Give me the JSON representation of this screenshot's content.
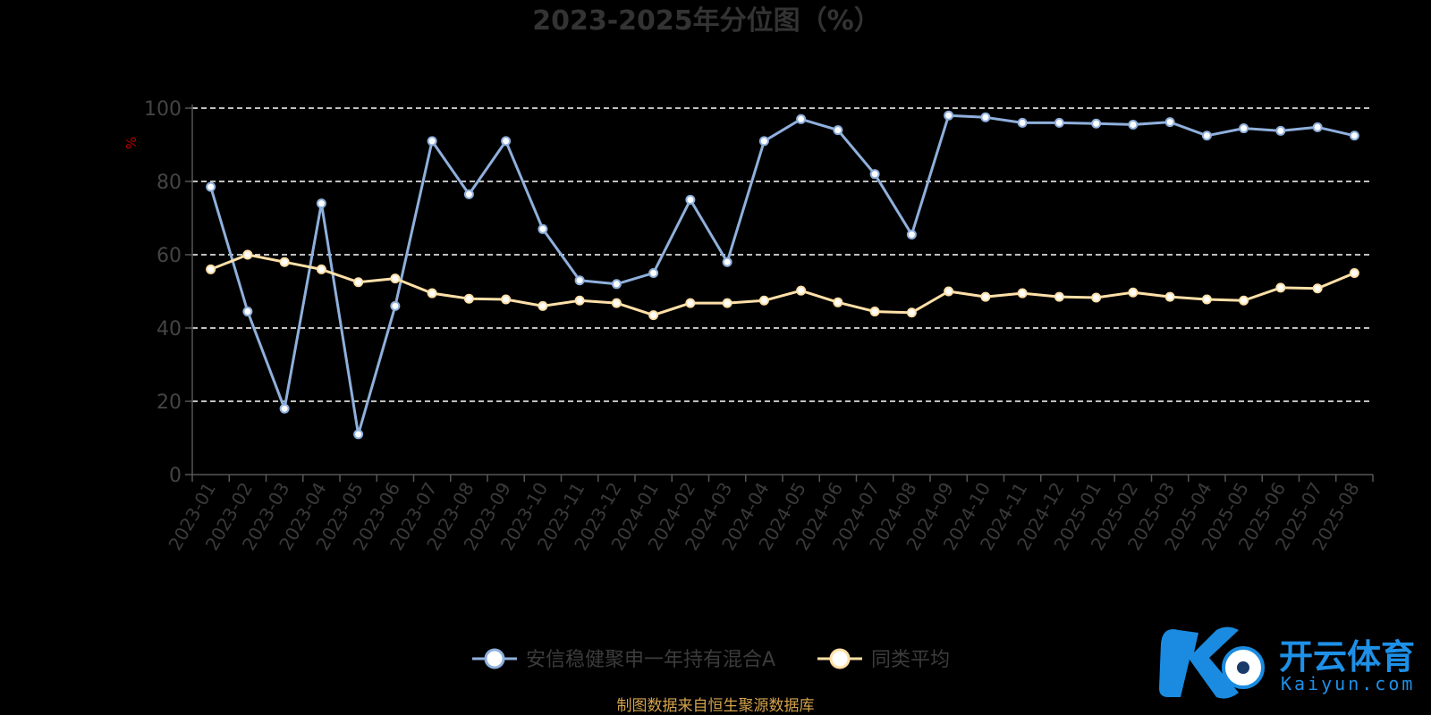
{
  "chart_data": {
    "type": "line",
    "title": "2023-2025年分位图（%）",
    "ylabel": "%",
    "xlabel": "",
    "ylim": [
      0,
      100
    ],
    "yticks": [
      0,
      20,
      40,
      60,
      80,
      100
    ],
    "grid": true,
    "grid_style": "dashed",
    "legend_position": "bottom",
    "categories": [
      "2023-01",
      "2023-02",
      "2023-03",
      "2023-04",
      "2023-05",
      "2023-06",
      "2023-07",
      "2023-08",
      "2023-09",
      "2023-10",
      "2023-11",
      "2023-12",
      "2024-01",
      "2024-02",
      "2024-03",
      "2024-04",
      "2024-05",
      "2024-06",
      "2024-07",
      "2024-08",
      "2024-09",
      "2024-10",
      "2024-11",
      "2024-12",
      "2025-01",
      "2025-02",
      "2025-03",
      "2025-04",
      "2025-05",
      "2025-06",
      "2025-07",
      "2025-08"
    ],
    "series": [
      {
        "name": "安信稳健聚申一年持有混合A",
        "color": "#8fb0dc",
        "values": [
          78.5,
          44.5,
          18,
          74,
          11,
          46,
          91,
          76.5,
          91,
          67,
          53,
          52,
          55,
          75,
          58,
          91,
          97,
          94,
          82,
          65.5,
          98,
          97.5,
          96,
          96,
          95.8,
          95.5,
          96.2,
          92.5,
          94.5,
          93.8,
          94.8,
          92.5
        ]
      },
      {
        "name": "同类平均",
        "color": "#ffe0a8",
        "values": [
          56,
          60,
          58,
          56,
          52.5,
          53.5,
          49.5,
          48,
          47.8,
          46,
          47.5,
          46.8,
          43.5,
          46.8,
          46.8,
          47.5,
          50.2,
          47,
          44.5,
          44.2,
          50,
          48.5,
          49.5,
          48.5,
          48.3,
          49.7,
          48.5,
          47.8,
          47.5,
          51,
          50.8,
          55
        ]
      }
    ]
  },
  "source_note": "制图数据来自恒生聚源数据库",
  "watermark": {
    "brand_cn": "开云体育",
    "brand_en": "Kaiyun.com"
  }
}
